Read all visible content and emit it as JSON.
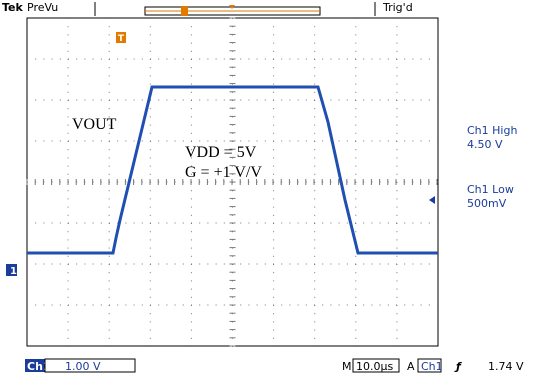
{
  "header": {
    "brand": "Tek",
    "mode": "PreVu",
    "status": "Trig'd",
    "trigger_marker": "T"
  },
  "screen": {
    "position_marker": "T",
    "ground_marker": "1",
    "annotations": [
      "VOUT",
      "VDD = 5V",
      "G = +1 V/V"
    ]
  },
  "measurements": [
    {
      "label": "Ch1 High",
      "value": "4.50 V"
    },
    {
      "label": "Ch1 Low",
      "value": "500mV"
    }
  ],
  "footer": {
    "channel": "Ch1",
    "scale": "1.00 V",
    "timebase_prefix": "M",
    "timebase": "10.0µs",
    "trigger_mode": "A",
    "trigger_source": "Ch1",
    "trigger_slope": "ƒ",
    "trigger_level": "1.74 V"
  }
}
